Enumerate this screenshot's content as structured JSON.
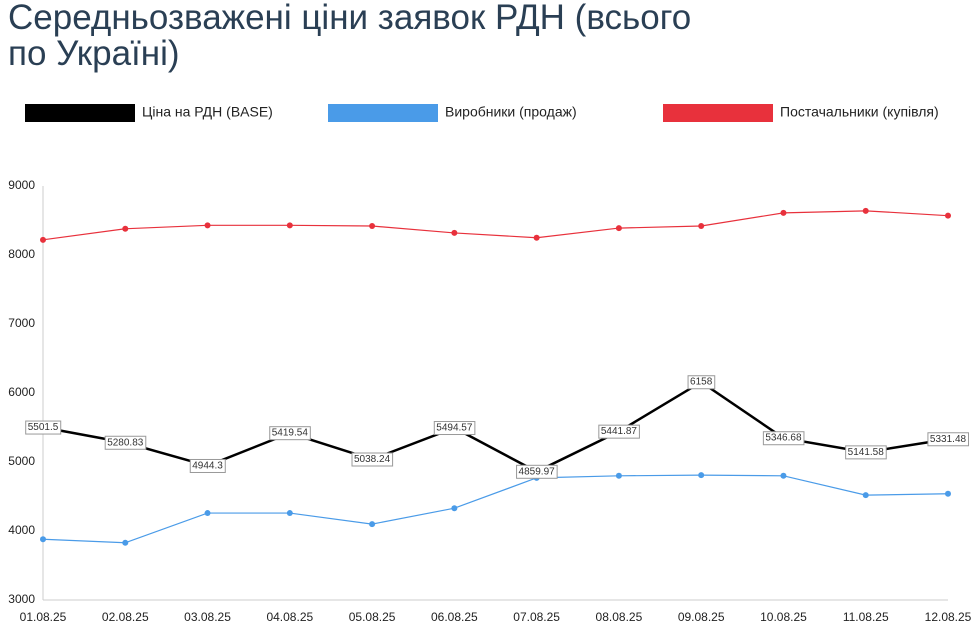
{
  "chart_data": {
    "type": "line",
    "title": "Середньозважені ціни заявок РДН (всього по Україні)",
    "categories": [
      "01.08.25",
      "02.08.25",
      "03.08.25",
      "04.08.25",
      "05.08.25",
      "06.08.25",
      "07.08.25",
      "08.08.25",
      "09.08.25",
      "10.08.25",
      "11.08.25",
      "12.08.25"
    ],
    "series": [
      {
        "name": "Ціна на РДН (BASE)",
        "color": "#000000",
        "data_labels": true,
        "values": [
          5501.5,
          5280.83,
          4944.3,
          5419.54,
          5038.24,
          5494.57,
          4859.97,
          5441.87,
          6158,
          5346.68,
          5141.58,
          5331.48
        ]
      },
      {
        "name": "Виробники (продаж)",
        "color": "#4a9be8",
        "values": [
          3880,
          3830,
          4260,
          4260,
          4100,
          4330,
          4770,
          4800,
          4810,
          4800,
          4520,
          4540
        ]
      },
      {
        "name": "Постачальники (купівля)",
        "color": "#e8313c",
        "values": [
          8220,
          8380,
          8430,
          8430,
          8420,
          8320,
          8250,
          8390,
          8420,
          8610,
          8640,
          8570
        ]
      }
    ],
    "ylim": [
      3000,
      9000
    ],
    "yticks": [
      3000,
      4000,
      5000,
      6000,
      7000,
      8000,
      9000
    ],
    "grid": false
  }
}
